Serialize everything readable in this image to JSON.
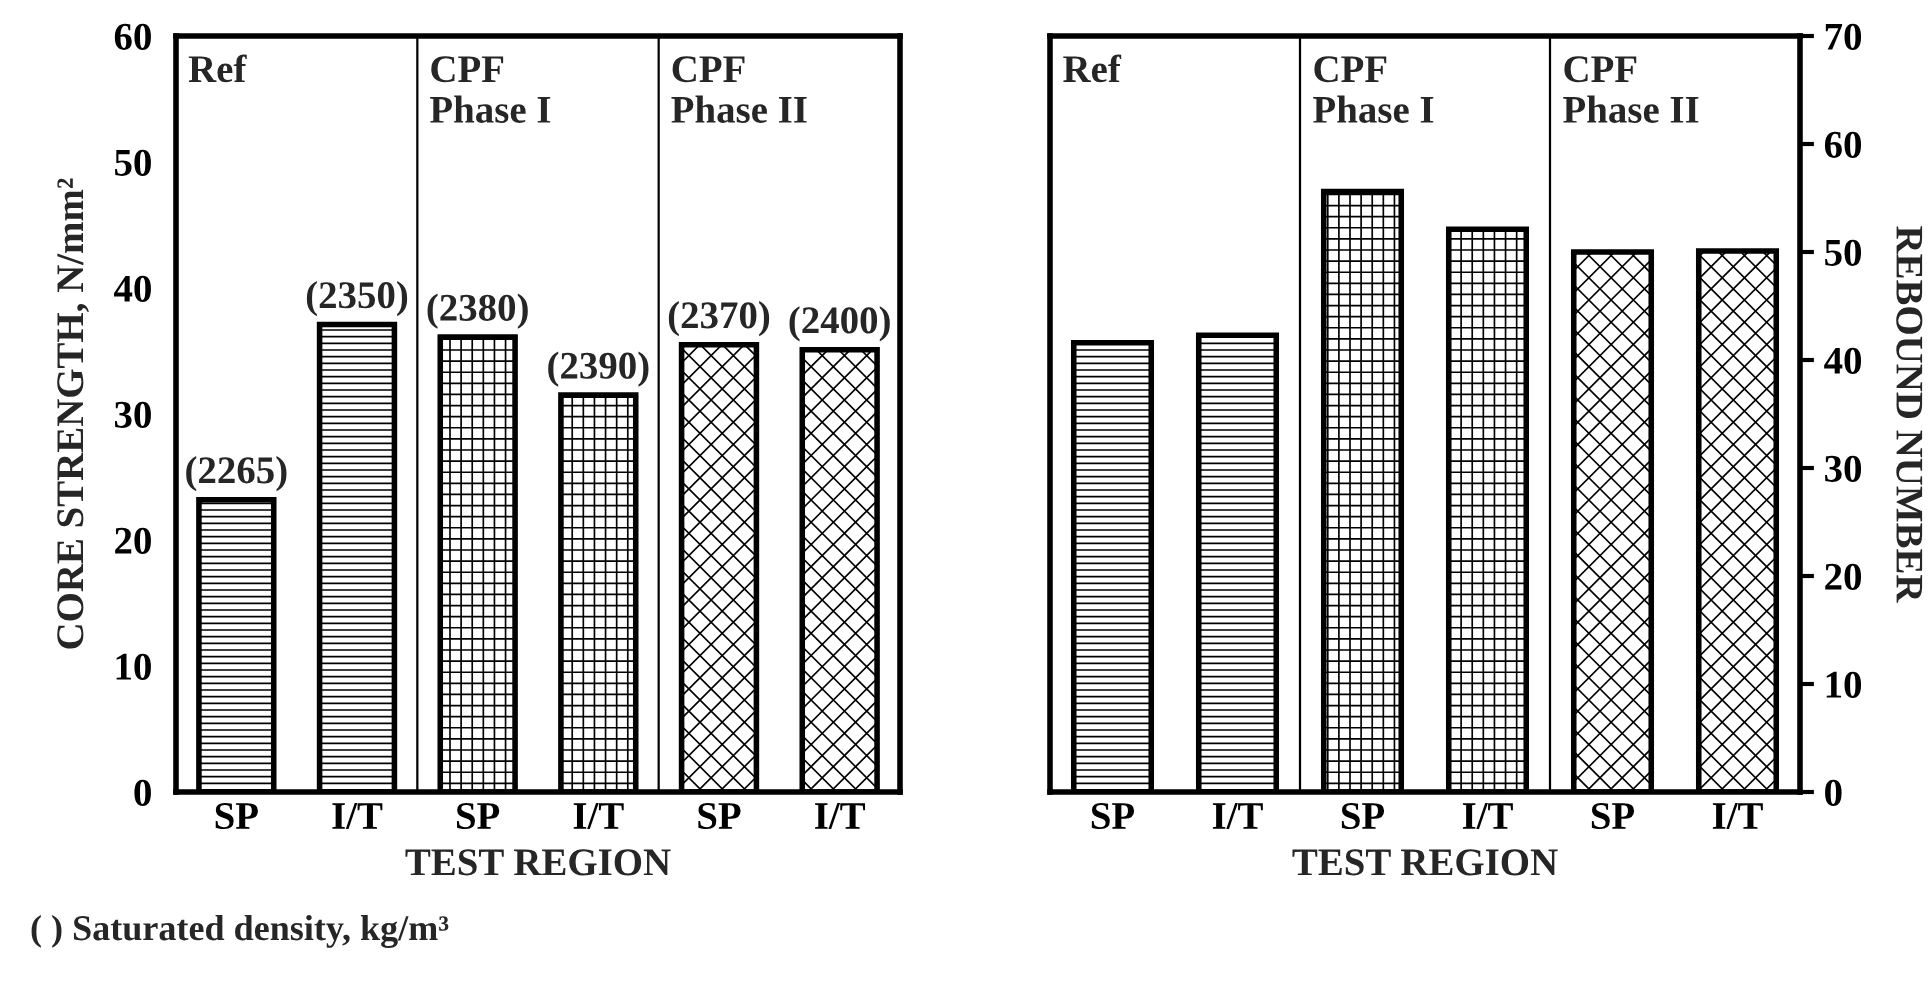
{
  "chart_data": [
    {
      "type": "bar",
      "categories": [
        "SP",
        "I/T",
        "SP",
        "I/T",
        "SP",
        "I/T"
      ],
      "xlabel": "TEST REGION",
      "ylabel": "CORE STRENGTH, N/mm²",
      "ylim": [
        0,
        60
      ],
      "yticks": [
        0,
        10,
        20,
        30,
        40,
        50,
        60
      ],
      "series": [
        {
          "color": "#000000",
          "values": [
            23.2,
            37.1,
            36.1,
            31.5,
            35.5,
            35.1
          ]
        }
      ],
      "annotations": [
        "Ref",
        "CPF\nPhase I",
        "CPF\nPhase II",
        {
          "text": "(2265)",
          "y": 23.2
        },
        {
          "text": "(2350)",
          "y": 37.1
        },
        {
          "text": "(2380)",
          "y": 36.1
        },
        {
          "text": "(2390)",
          "y": 31.5
        },
        {
          "text": "(2370)",
          "y": 35.5
        },
        {
          "text": "(2400)",
          "y": 35.1
        },
        "( ) Saturated density, kg/m³"
      ],
      "grid": false,
      "legend": false
    },
    {
      "type": "bar",
      "categories": [
        "SP",
        "I/T",
        "SP",
        "I/T",
        "SP",
        "I/T"
      ],
      "xlabel": "TEST REGION",
      "y2label": "REBOUND NUMBER",
      "y2lim": [
        0,
        70
      ],
      "y2ticks": [
        0,
        10,
        20,
        30,
        40,
        50,
        60,
        70
      ],
      "series": [
        {
          "color": "#000000",
          "axis": "y2",
          "values": [
            41.6,
            42.3,
            55.6,
            52.1,
            50.0,
            50.1
          ]
        }
      ],
      "annotations": [
        "Ref",
        "CPF\nPhase I",
        "CPF\nPhase II"
      ],
      "grid": false,
      "legend": false
    }
  ]
}
